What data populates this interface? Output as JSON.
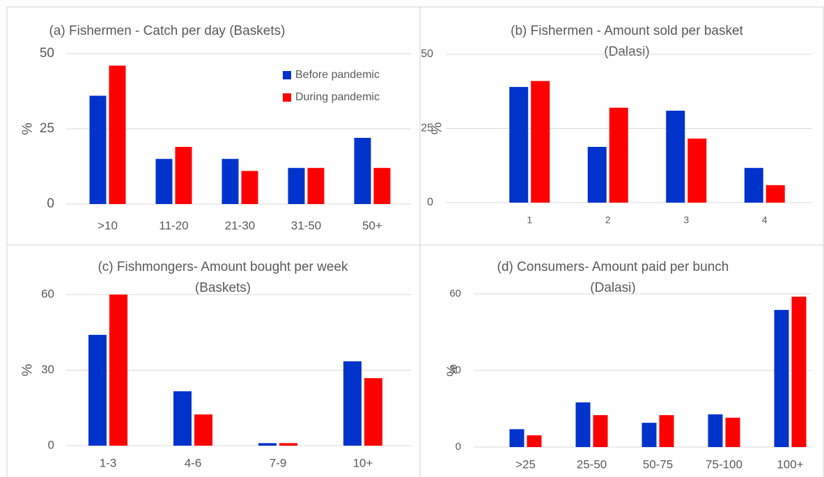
{
  "chart_data": [
    {
      "type": "bar",
      "title": [
        "(a) Fishermen - Catch per day (Baskets)"
      ],
      "ylabel": "%",
      "categories": [
        ">10",
        "11-20",
        "21-30",
        "31-50",
        "50+"
      ],
      "series": [
        {
          "name": "Before pandemic",
          "color": "#0033cc",
          "values": [
            36,
            15,
            15,
            12,
            22
          ]
        },
        {
          "name": "During pandemic",
          "color": "#ff0000",
          "values": [
            46,
            19,
            11,
            12,
            12
          ]
        }
      ],
      "ylim": [
        0,
        50
      ],
      "yticks": [
        0,
        25,
        50
      ],
      "grid": true,
      "legend": "upper right"
    },
    {
      "type": "bar",
      "title": [
        "(b) Fishermen - Amount sold per basket",
        "(Dalasi)"
      ],
      "ylabel": "%",
      "categories": [
        "1",
        "2",
        "3",
        "4"
      ],
      "series": [
        {
          "color": "#0033cc",
          "values": [
            39,
            18.8,
            31,
            11.7
          ]
        },
        {
          "color": "#ff0000",
          "values": [
            41,
            32,
            21.6,
            5.9
          ]
        }
      ],
      "ylim": [
        0,
        50
      ],
      "yticks": [
        0,
        25,
        50
      ],
      "grid": true
    },
    {
      "type": "bar",
      "title": [
        "(c) Fishmongers- Amount bought per week",
        "(Baskets)"
      ],
      "ylabel": "%",
      "categories": [
        "1-3",
        "4-6",
        "7-9",
        "10+"
      ],
      "series": [
        {
          "color": "#0033cc",
          "values": [
            44,
            21.6,
            1,
            33.5
          ]
        },
        {
          "color": "#ff0000",
          "values": [
            60,
            12.4,
            1,
            26.8
          ]
        }
      ],
      "ylim": [
        0,
        60
      ],
      "yticks": [
        0,
        30,
        60
      ],
      "grid": true
    },
    {
      "type": "bar",
      "title": [
        "(d) Consumers- Amount paid per bunch",
        "(Dalasi)"
      ],
      "ylabel": "%",
      "categories": [
        ">25",
        "25-50",
        "50-75",
        "75-100",
        "100+"
      ],
      "series": [
        {
          "color": "#0033cc",
          "values": [
            7,
            17.5,
            9.5,
            12.8,
            53.7
          ]
        },
        {
          "color": "#ff0000",
          "values": [
            4.6,
            12.5,
            12.5,
            11.5,
            58.9
          ]
        }
      ],
      "ylim": [
        0,
        60
      ],
      "yticks": [
        0,
        30,
        60
      ],
      "grid": true
    }
  ]
}
